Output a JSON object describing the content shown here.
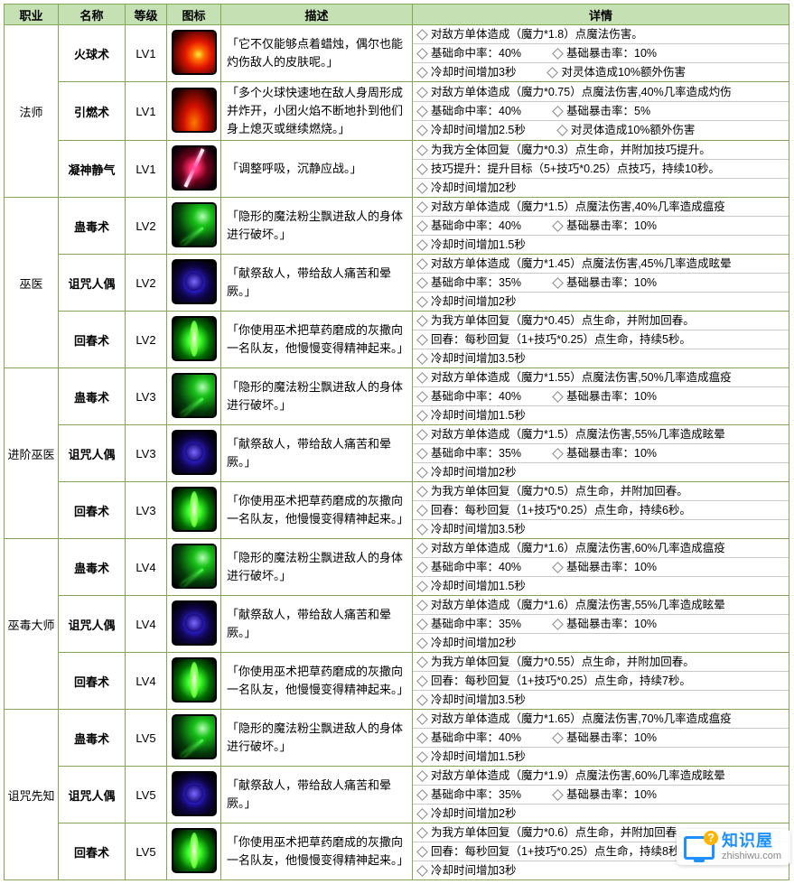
{
  "headers": {
    "job": "职业",
    "name": "名称",
    "level": "等级",
    "icon": "图标",
    "desc": "描述",
    "detail": "详情"
  },
  "watermark": {
    "title": "知识屋",
    "sub": "zhishiwu.com"
  },
  "iconClasses": {
    "fireball": "ic-fireball",
    "ignite": "ic-ignite",
    "calm": "ic-calm",
    "plague": "ic-plague",
    "curse": "ic-curse",
    "regrow": "ic-regrow"
  },
  "groups": [
    {
      "job": "法师",
      "skills": [
        {
          "name": "火球术",
          "level": "LV1",
          "icon": "fireball",
          "desc": "「它不仅能够点着蜡烛，偶尔也能灼伤敌人的皮肤呢。」",
          "details": [
            "对敌方单体造成（魔力*1.8）点魔法伤害。",
            "基础命中率：40%||基础暴击率：10%",
            "冷却时间增加3秒||对灵体造成10%额外伤害"
          ]
        },
        {
          "name": "引燃术",
          "level": "LV1",
          "icon": "ignite",
          "desc": "「多个火球快速地在敌人身周形成并炸开，小团火焰不断地扑到他们身上熄灭或继续燃烧。」",
          "details": [
            "对敌方单体造成（魔力*0.75）点魔法伤害,40%几率造成灼伤",
            "基础命中率：40%||基础暴击率：5%",
            "冷却时间增加2.5秒||对灵体造成10%额外伤害"
          ]
        },
        {
          "name": "凝神静气",
          "level": "LV1",
          "icon": "calm",
          "desc": "「调整呼吸，沉静应战。」",
          "details": [
            "为我方全体回复（魔力*0.3）点生命，并附加技巧提升。",
            "技巧提升：提升目标（5+技巧*0.25）点技巧，持续10秒。",
            "冷却时间增加2秒"
          ]
        }
      ]
    },
    {
      "job": "巫医",
      "skills": [
        {
          "name": "蛊毒术",
          "level": "LV2",
          "icon": "plague",
          "desc": "「隐形的魔法粉尘飘进敌人的身体进行破坏。」",
          "details": [
            "对敌方单体造成（魔力*1.5）点魔法伤害,40%几率造成瘟疫",
            "基础命中率：40%||基础暴击率：10%",
            "冷却时间增加1.5秒"
          ]
        },
        {
          "name": "诅咒人偶",
          "level": "LV2",
          "icon": "curse",
          "desc": "「献祭敌人，带给敌人痛苦和晕厥。」",
          "details": [
            "对敌方单体造成（魔力*1.45）点魔法伤害,45%几率造成眩晕",
            "基础命中率：35%||基础暴击率：10%",
            "冷却时间增加2秒"
          ]
        },
        {
          "name": "回春术",
          "level": "LV2",
          "icon": "regrow",
          "desc": "「你使用巫术把草药磨成的灰撒向一名队友，他慢慢变得精神起来。」",
          "details": [
            "为我方单体回复（魔力*0.45）点生命，并附加回春。",
            "回春：每秒回复（1+技巧*0.25）点生命，持续5秒。",
            "冷却时间增加3.5秒"
          ]
        }
      ]
    },
    {
      "job": "进阶巫医",
      "skills": [
        {
          "name": "蛊毒术",
          "level": "LV3",
          "icon": "plague",
          "desc": "「隐形的魔法粉尘飘进敌人的身体进行破坏。」",
          "details": [
            "对敌方单体造成（魔力*1.55）点魔法伤害,50%几率造成瘟疫",
            "基础命中率：40%||基础暴击率：10%",
            "冷却时间增加1.5秒"
          ]
        },
        {
          "name": "诅咒人偶",
          "level": "LV3",
          "icon": "curse",
          "desc": "「献祭敌人，带给敌人痛苦和晕厥。」",
          "details": [
            "对敌方单体造成（魔力*1.5）点魔法伤害,55%几率造成眩晕",
            "基础命中率：35%||基础暴击率：10%",
            "冷却时间增加2秒"
          ]
        },
        {
          "name": "回春术",
          "level": "LV3",
          "icon": "regrow",
          "desc": "「你使用巫术把草药磨成的灰撒向一名队友，他慢慢变得精神起来。」",
          "details": [
            "为我方单体回复（魔力*0.5）点生命，并附加回春。",
            "回春：每秒回复（1+技巧*0.25）点生命，持续6秒。",
            "冷却时间增加3.5秒"
          ]
        }
      ]
    },
    {
      "job": "巫毒大师",
      "skills": [
        {
          "name": "蛊毒术",
          "level": "LV4",
          "icon": "plague",
          "desc": "「隐形的魔法粉尘飘进敌人的身体进行破坏。」",
          "details": [
            "对敌方单体造成（魔力*1.6）点魔法伤害,60%几率造成瘟疫",
            "基础命中率：40%||基础暴击率：10%",
            "冷却时间增加1.5秒"
          ]
        },
        {
          "name": "诅咒人偶",
          "level": "LV4",
          "icon": "curse",
          "desc": "「献祭敌人，带给敌人痛苦和晕厥。」",
          "details": [
            "对敌方单体造成（魔力*1.6）点魔法伤害,55%几率造成眩晕",
            "基础命中率：35%||基础暴击率：10%",
            "冷却时间增加2秒"
          ]
        },
        {
          "name": "回春术",
          "level": "LV4",
          "icon": "regrow",
          "desc": "「你使用巫术把草药磨成的灰撒向一名队友，他慢慢变得精神起来。」",
          "details": [
            "为我方单体回复（魔力*0.55）点生命，并附加回春。",
            "回春：每秒回复（1+技巧*0.25）点生命，持续7秒。",
            "冷却时间增加3.5秒"
          ]
        }
      ]
    },
    {
      "job": "诅咒先知",
      "skills": [
        {
          "name": "蛊毒术",
          "level": "LV5",
          "icon": "plague",
          "desc": "「隐形的魔法粉尘飘进敌人的身体进行破坏。」",
          "details": [
            "对敌方单体造成（魔力*1.65）点魔法伤害,70%几率造成瘟疫",
            "基础命中率：40%||基础暴击率：10%",
            "冷却时间增加1.5秒"
          ]
        },
        {
          "name": "诅咒人偶",
          "level": "LV5",
          "icon": "curse",
          "desc": "「献祭敌人，带给敌人痛苦和晕厥。」",
          "details": [
            "对敌方单体造成（魔力*1.9）点魔法伤害,60%几率造成眩晕",
            "基础命中率：35%||基础暴击率：10%",
            "冷却时间增加2秒"
          ]
        },
        {
          "name": "回春术",
          "level": "LV5",
          "icon": "regrow",
          "desc": "「你使用巫术把草药磨成的灰撒向一名队友，他慢慢变得精神起来。」",
          "details": [
            "为我方单体回复（魔力*0.6）点生命，并附加回春。",
            "回春：每秒回复（1+技巧*0.25）点生命，持续8秒。",
            "冷却时间增加3秒"
          ]
        }
      ]
    }
  ]
}
